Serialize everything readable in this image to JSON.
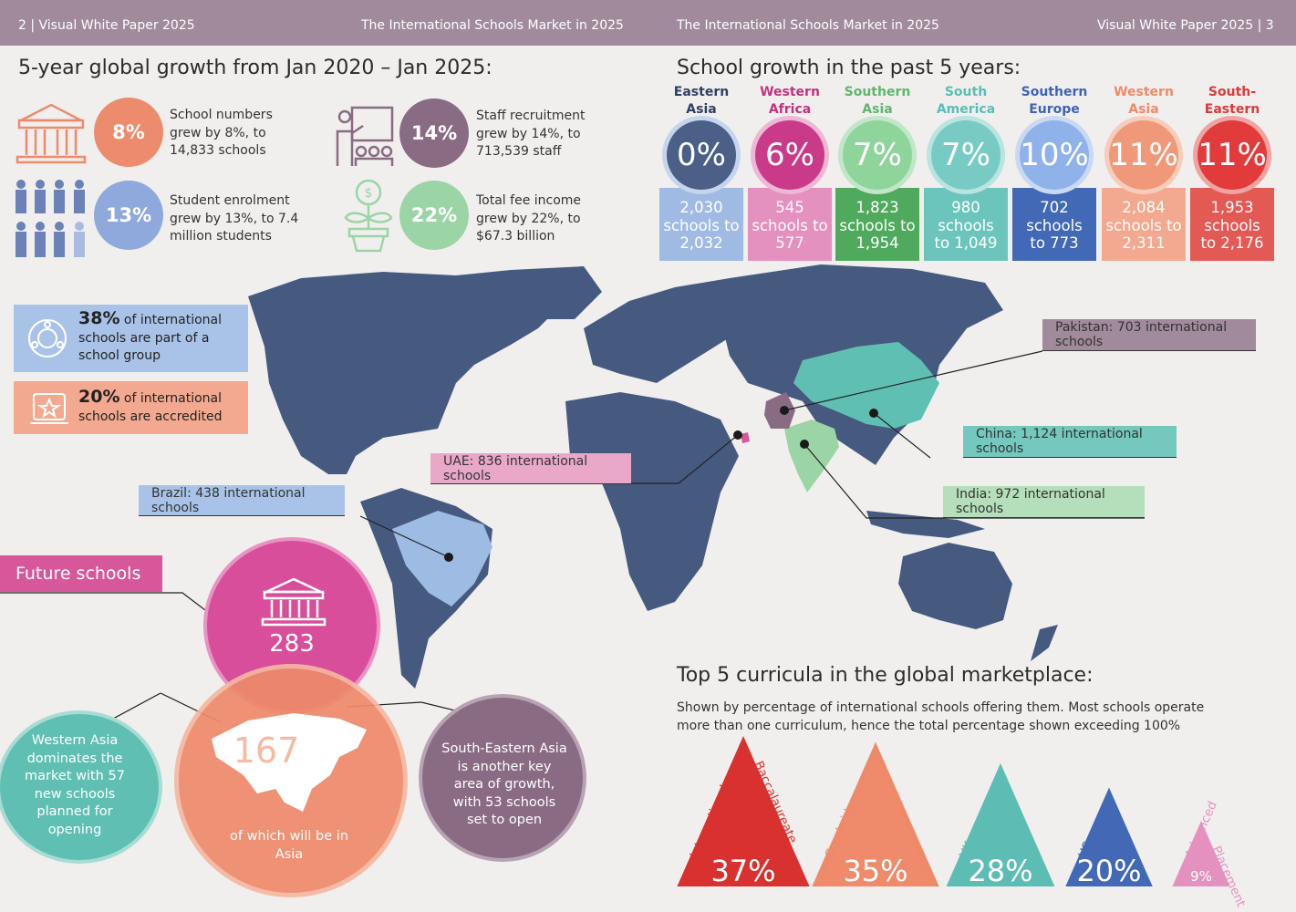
{
  "header": {
    "left_page": "2 | Visual White Paper 2025",
    "left_title": "The International Schools Market in 2025",
    "right_title": "The International Schools Market in 2025",
    "right_page": "Visual White Paper 2025 | 3"
  },
  "growth": {
    "title": "5-year global growth from Jan 2020 – Jan 2025:",
    "stats": [
      {
        "pct": "8%",
        "text": "School numbers\ngrew by 8%, to\n14,833 schools",
        "color": "#ec8c6c"
      },
      {
        "pct": "14%",
        "text": "Staff recruitment\ngrew by 14%, to\n713,539 staff",
        "color": "#8a6b84"
      },
      {
        "pct": "13%",
        "text": "Student enrolment\ngrew by 13%, to 7.4\nmillion students",
        "color": "#8fa9dc"
      },
      {
        "pct": "22%",
        "text": "Total fee income\ngrew by 22%, to\n$67.3 billion",
        "color": "#9bd5a5"
      }
    ]
  },
  "regions": {
    "title": "School growth in the past 5 years:",
    "items": [
      {
        "name": "Eastern\nAsia",
        "pct": "0%",
        "detail": "2,030\nschools to\n2,032",
        "name_color": "#2f3f63",
        "circle": "#4b5f87",
        "box": "#9fbbe3"
      },
      {
        "name": "Western\nAfrica",
        "pct": "6%",
        "detail": "545\nschools to\n577",
        "name_color": "#c2327f",
        "circle": "#c93a88",
        "box": "#e591bf"
      },
      {
        "name": "Southern\nAsia",
        "pct": "7%",
        "detail": "1,823\nschools to\n1,954",
        "name_color": "#5fb56d",
        "circle": "#8fd49b",
        "box": "#4faa5d"
      },
      {
        "name": "South\nAmerica",
        "pct": "7%",
        "detail": "980\nschools\nto 1,049",
        "name_color": "#5bbdb6",
        "circle": "#78cbc4",
        "box": "#6cc5bd"
      },
      {
        "name": "Southern\nEurope",
        "pct": "10%",
        "detail": "702\nschools\nto 773",
        "name_color": "#3f62b5",
        "circle": "#8fb2ea",
        "box": "#4269b6"
      },
      {
        "name": "Western\nAsia",
        "pct": "11%",
        "detail": "2,084\nschools to\n2,311",
        "name_color": "#ee8a6a",
        "circle": "#f0997a",
        "box": "#f3a98f"
      },
      {
        "name": "South-\nEastern Asia",
        "pct": "11%",
        "detail": "1,953\nschools\nto 2,176",
        "name_color": "#d93a3a",
        "circle": "#e13b3b",
        "box": "#e35a55"
      }
    ]
  },
  "facts": [
    {
      "bold": "38%",
      "text": " of international\nschools are part of a\nschool group"
    },
    {
      "bold": "20%",
      "text": " of international\nschools are accredited"
    }
  ],
  "map_labels": {
    "pakistan": "Pakistan: 703 international schools",
    "china": "China: 1,124 international schools",
    "uae": "UAE: 836 international schools",
    "brazil": "Brazil: 438 international schools",
    "india": "India: 972 international schools"
  },
  "future": {
    "title": "Future schools",
    "total": "283",
    "asia": "167",
    "asia_caption": "of which will be in\nAsia",
    "western_asia": "Western Asia\ndominates the\nmarket with 57\nnew schools\nplanned for\nopening",
    "se_asia": "South-Eastern Asia\nis another key\narea of growth,\nwith 53 schools\nset to open"
  },
  "curricula": {
    "title": "Top 5 curricula in the global marketplace:",
    "subtitle": "Shown by percentage of international schools offering them. Most schools operate\nmore than one curriculum, hence the total percentage shown exceeding 100%",
    "items": [
      {
        "name_a": "International",
        "name_b": "Baccalaureate",
        "pct": "37%",
        "value": 37,
        "color": "#d8312f"
      },
      {
        "name_a": "Cambridge",
        "name_b": "",
        "pct": "35%",
        "value": 35,
        "color": "#ee8a6a"
      },
      {
        "name_a": "UK",
        "name_b": "",
        "pct": "28%",
        "value": 28,
        "color": "#5dbdb5"
      },
      {
        "name_a": "US",
        "name_b": "",
        "pct": "20%",
        "value": 20,
        "color": "#4269b6"
      },
      {
        "name_a": "Advanced",
        "name_b": "Placement",
        "pct": "9%",
        "value": 9,
        "color": "#e591bf"
      }
    ]
  }
}
